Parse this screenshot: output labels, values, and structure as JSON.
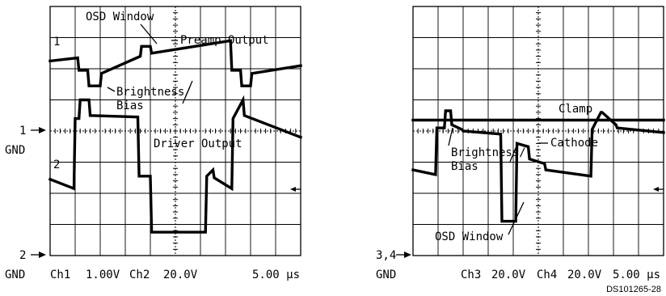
{
  "chart_data": [
    {
      "type": "line",
      "title": "",
      "time_per_div": "5.00 µs",
      "divisions": {
        "x": 10,
        "y": 8
      },
      "grid": true,
      "channels": [
        {
          "name": "Ch1",
          "volts_per_div": "1.00V",
          "marker": "1"
        },
        {
          "name": "Ch2",
          "volts_per_div": "20.0V",
          "marker": "2"
        }
      ],
      "series": [
        {
          "name": "Preamp Output",
          "x": [
            0,
            1.1,
            1.15,
            1.5,
            1.55,
            2.0,
            2.05,
            3.6,
            3.65,
            4.0,
            4.05,
            7.2,
            7.25,
            7.6,
            7.65,
            8.0,
            8.05,
            10.0
          ],
          "y": [
            6.25,
            6.35,
            5.95,
            5.95,
            5.45,
            5.45,
            5.85,
            6.4,
            6.72,
            6.72,
            6.5,
            6.9,
            5.95,
            5.95,
            5.45,
            5.45,
            5.85,
            6.1
          ]
        },
        {
          "name": "Driver Output",
          "x": [
            0,
            0.95,
            1.0,
            1.15,
            1.2,
            1.55,
            1.6,
            3.5,
            3.55,
            4.0,
            4.05,
            6.2,
            6.25,
            6.5,
            6.55,
            7.25,
            7.3,
            7.7,
            7.75,
            10.0
          ],
          "y": [
            2.45,
            2.15,
            4.4,
            4.4,
            5.0,
            5.0,
            4.5,
            4.45,
            2.55,
            2.55,
            0.75,
            0.75,
            2.55,
            2.75,
            2.5,
            2.15,
            4.4,
            5.0,
            4.5,
            3.8
          ]
        }
      ],
      "ground_markers": [
        {
          "label": "1",
          "sub": "GND"
        },
        {
          "label": "2",
          "sub": "GND"
        }
      ]
    },
    {
      "type": "line",
      "title": "",
      "time_per_div": "5.00 µs",
      "divisions": {
        "x": 10,
        "y": 8
      },
      "grid": true,
      "channels": [
        {
          "name": "Ch3",
          "volts_per_div": "20.0V"
        },
        {
          "name": "Ch4",
          "volts_per_div": "20.0V"
        }
      ],
      "series": [
        {
          "name": "Clamp",
          "x": [
            0,
            10.0
          ],
          "y": [
            4.35,
            4.35
          ]
        },
        {
          "name": "Cathode",
          "x": [
            0,
            0.9,
            0.95,
            1.25,
            1.3,
            1.5,
            1.55,
            1.95,
            2.0,
            3.5,
            3.55,
            4.1,
            4.15,
            4.6,
            4.65,
            5.25,
            5.3,
            7.1,
            7.15,
            7.5,
            7.55,
            8.1,
            8.15,
            10.0
          ],
          "y": [
            2.75,
            2.6,
            4.1,
            4.1,
            4.65,
            4.65,
            4.2,
            4.05,
            4.0,
            3.9,
            1.1,
            1.1,
            3.6,
            3.5,
            3.1,
            2.95,
            2.75,
            2.55,
            4.05,
            4.6,
            4.6,
            4.2,
            4.1,
            3.95
          ]
        }
      ],
      "ground_markers": [
        {
          "label": "3,4",
          "sub": "GND"
        }
      ]
    }
  ],
  "left_scope": {
    "annotations": {
      "osd_window": "OSD Window",
      "preamp_output": "Preamp Output",
      "brightness": "Brightness/",
      "bias": "Bias",
      "driver_output": "Driver Output"
    },
    "trace_markers": {
      "ch1": "1",
      "ch2": "2"
    },
    "ground": {
      "g1_label": "1",
      "g1_sub": "GND",
      "g2_label": "2",
      "g2_sub": "GND"
    },
    "footer": {
      "ch1": "Ch1",
      "ch1_scale": "1.00V",
      "ch2": "Ch2",
      "ch2_scale": "20.0V",
      "time": "5.00 µs"
    }
  },
  "right_scope": {
    "annotations": {
      "clamp": "Clamp",
      "cathode": "Cathode",
      "brightness": "Brightness/",
      "bias": "Bias",
      "osd_window": "OSD Window"
    },
    "ground": {
      "label": "3,4",
      "sub": "GND"
    },
    "footer": {
      "ch3": "Ch3",
      "ch3_scale": "20.0V",
      "ch4": "Ch4",
      "ch4_scale": "20.0V",
      "time": "5.00 µs"
    }
  },
  "figure_id": "DS101265-28"
}
